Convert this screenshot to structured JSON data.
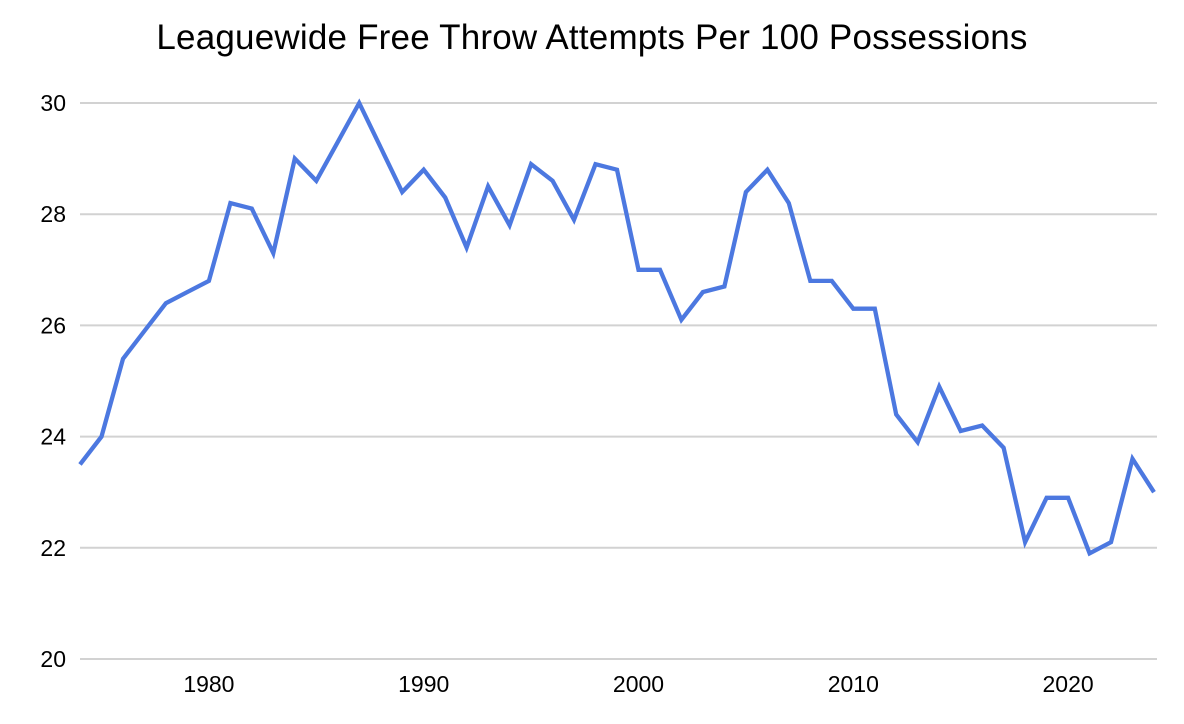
{
  "page": {
    "background": "#ffffff"
  },
  "chart_data": {
    "type": "line",
    "title": "Leaguewide Free Throw Attempts Per 100 Possessions",
    "x": [
      1974,
      1975,
      1976,
      1977,
      1978,
      1979,
      1980,
      1981,
      1982,
      1983,
      1984,
      1985,
      1986,
      1987,
      1988,
      1989,
      1990,
      1991,
      1992,
      1993,
      1994,
      1995,
      1996,
      1997,
      1998,
      1999,
      2000,
      2001,
      2002,
      2003,
      2004,
      2005,
      2006,
      2007,
      2008,
      2009,
      2010,
      2011,
      2012,
      2013,
      2014,
      2015,
      2016,
      2017,
      2018,
      2019,
      2020,
      2021,
      2022,
      2023,
      2024
    ],
    "values": [
      23.5,
      24.0,
      25.4,
      25.9,
      26.4,
      26.6,
      26.8,
      28.2,
      28.1,
      27.3,
      29.0,
      28.6,
      29.3,
      30.0,
      29.2,
      28.4,
      28.8,
      28.3,
      27.4,
      28.5,
      27.8,
      28.9,
      28.6,
      27.9,
      28.9,
      28.8,
      27.0,
      27.0,
      26.1,
      26.6,
      26.7,
      28.4,
      28.8,
      28.2,
      26.8,
      26.8,
      26.3,
      26.3,
      24.4,
      23.9,
      24.9,
      24.1,
      24.2,
      23.8,
      22.1,
      22.9,
      22.9,
      21.9,
      22.1,
      23.6,
      23.0
    ],
    "xlabel": "",
    "ylabel": "",
    "xticks": [
      1980,
      1990,
      2000,
      2010,
      2020
    ],
    "yticks": [
      20,
      22,
      24,
      26,
      28,
      30
    ],
    "xlim": [
      1974,
      2024
    ],
    "ylim": [
      20,
      30
    ],
    "grid": "horizontal",
    "legend": "none",
    "line_color": "#4c78e0",
    "gridline_color": "#d2d2d2",
    "text_color": "#000000"
  }
}
